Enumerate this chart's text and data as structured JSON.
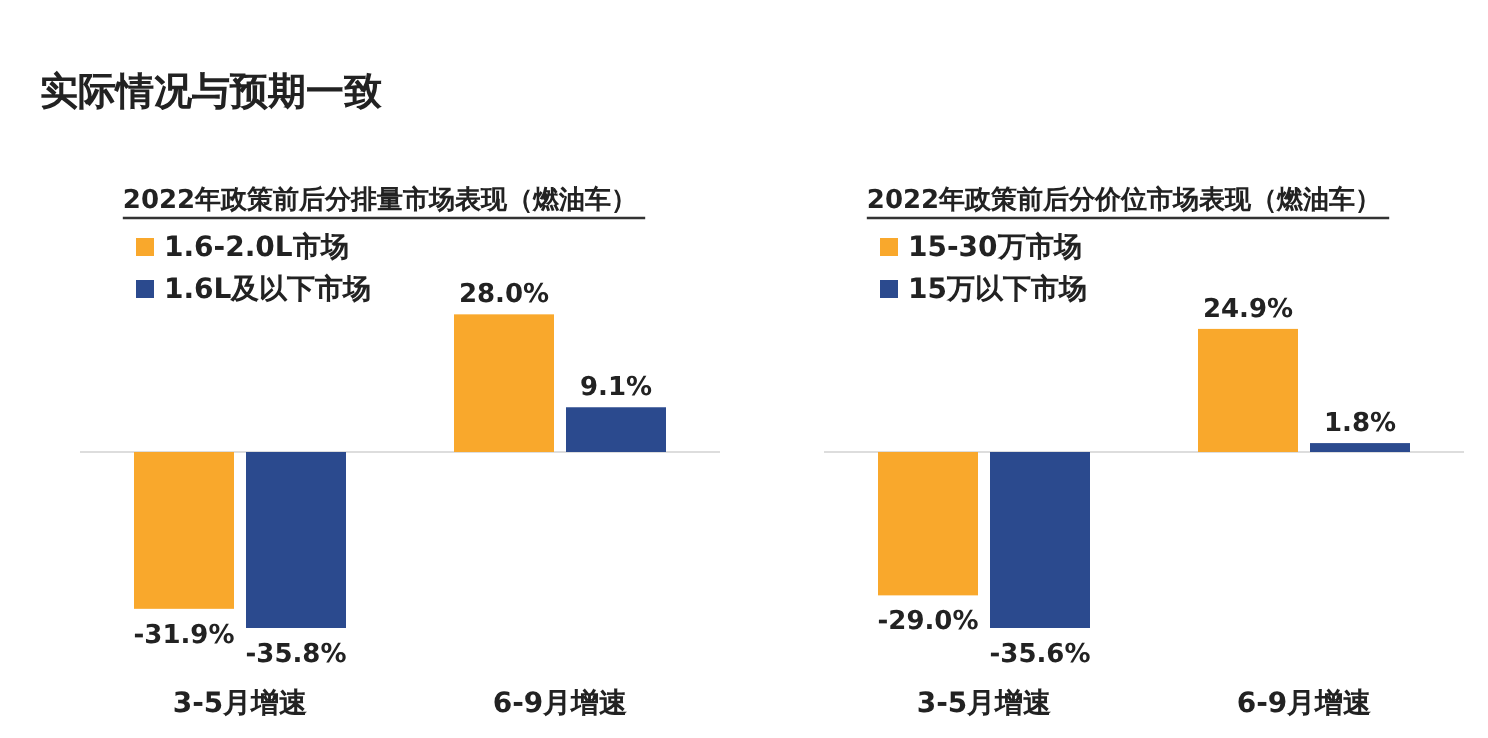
{
  "chart_data": [
    {
      "type": "bar",
      "title": "2022年政策前后分排量市场表现（燃油车）",
      "annotations": [
        "实际情况与预期一致"
      ],
      "categories": [
        "3-5月增速",
        "6-9月增速"
      ],
      "series": [
        {
          "name": "1.6-2.0L市场",
          "color": "#f9a82c",
          "values": [
            -31.9,
            28.0
          ],
          "value_labels": [
            "-31.9%",
            "28.0%"
          ]
        },
        {
          "name": "1.6L及以下市场",
          "color": "#2b4a8e",
          "values": [
            -35.8,
            9.1
          ],
          "value_labels": [
            "-35.8%",
            "9.1%"
          ]
        }
      ],
      "legend": "top left"
    },
    {
      "type": "bar",
      "title": "2022年政策前后分价位市场表现（燃油车）",
      "categories": [
        "3-5月增速",
        "6-9月增速"
      ],
      "series": [
        {
          "name": "15-30万市场",
          "color": "#f9a82c",
          "values": [
            -29.0,
            24.9
          ],
          "value_labels": [
            "-29.0%",
            "24.9%"
          ]
        },
        {
          "name": "15万以下市场",
          "color": "#2b4a8e",
          "values": [
            -35.6,
            1.8
          ],
          "value_labels": [
            "-35.6%",
            "1.8%"
          ]
        }
      ],
      "legend": "top left"
    }
  ]
}
